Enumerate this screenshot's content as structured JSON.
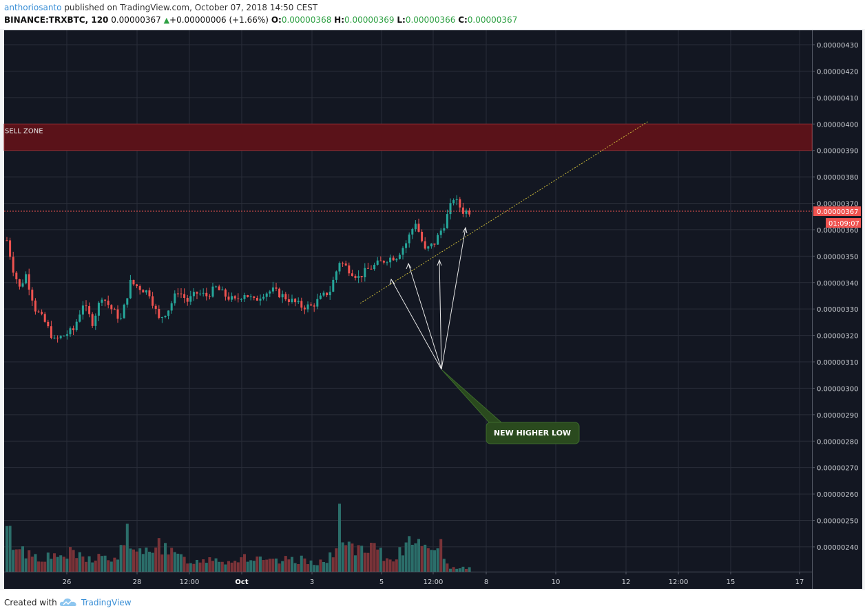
{
  "header": {
    "author": "anthoriosanto",
    "published": "published on TradingView.com, October 07, 2018 14:50 CEST",
    "symbol": "BINANCE:TRXBTC, 120",
    "last": "0.00000367",
    "change": "+0.00000006 (+1.66%)",
    "o_label": "O:",
    "o_val": "0.00000368",
    "h_label": "H:",
    "h_val": "0.00000369",
    "l_label": "L:",
    "l_val": "0.00000366",
    "c_label": "C:",
    "c_val": "0.00000367"
  },
  "footer": {
    "created_with": "Created with",
    "brand": "TradingView"
  },
  "colors": {
    "background": "#131722",
    "up": "#26a69a",
    "down": "#ef5350",
    "sell_zone": "#5a1219",
    "trendline": "#c9b93a",
    "callout": "#2a4a1e"
  },
  "chart_data": {
    "type": "candlestick",
    "y_ticks": [
      "0.00000430",
      "0.00000420",
      "0.00000410",
      "0.00000400",
      "0.00000390",
      "0.00000380",
      "0.00000370",
      "0.00000360",
      "0.00000350",
      "0.00000340",
      "0.00000330",
      "0.00000320",
      "0.00000310",
      "0.00000300",
      "0.00000290",
      "0.00000280",
      "0.00000270",
      "0.00000260",
      "0.00000250",
      "0.00000240"
    ],
    "x_ticks": [
      "26",
      "28",
      "12:00",
      "Oct",
      "3",
      "5",
      "12:00",
      "8",
      "10",
      "12",
      "12:00",
      "15",
      "17"
    ],
    "current_price_label": "0.00000367",
    "countdown_label": "01:09:07",
    "sell_zone": {
      "label": "SELL ZONE",
      "from": 3.9e-06,
      "to": 4e-06
    },
    "annotation": "NEW HIGHER LOW",
    "price_anchors": [
      [
        0,
        356
      ],
      [
        2,
        345
      ],
      [
        4,
        338
      ],
      [
        6,
        343
      ],
      [
        9,
        330
      ],
      [
        12,
        325
      ],
      [
        15,
        318
      ],
      [
        18,
        320
      ],
      [
        21,
        322
      ],
      [
        24,
        332
      ],
      [
        27,
        325
      ],
      [
        30,
        335
      ],
      [
        33,
        330
      ],
      [
        36,
        326
      ],
      [
        39,
        340
      ],
      [
        42,
        338
      ],
      [
        45,
        336
      ],
      [
        48,
        326
      ],
      [
        51,
        330
      ],
      [
        54,
        337
      ],
      [
        57,
        333
      ],
      [
        60,
        336
      ],
      [
        63,
        335
      ],
      [
        66,
        338
      ],
      [
        69,
        335
      ],
      [
        72,
        333
      ],
      [
        75,
        336
      ],
      [
        78,
        333
      ],
      [
        81,
        336
      ],
      [
        84,
        337
      ],
      [
        87,
        335
      ],
      [
        90,
        333
      ],
      [
        93,
        331
      ],
      [
        96,
        331
      ],
      [
        99,
        334
      ],
      [
        102,
        337
      ],
      [
        105,
        348
      ],
      [
        108,
        345
      ],
      [
        111,
        342
      ],
      [
        114,
        345
      ],
      [
        117,
        347
      ],
      [
        120,
        349
      ],
      [
        123,
        350
      ],
      [
        126,
        355
      ],
      [
        129,
        363
      ],
      [
        132,
        352
      ],
      [
        135,
        355
      ],
      [
        138,
        362
      ],
      [
        141,
        372
      ],
      [
        144,
        367
      ],
      [
        146,
        367
      ]
    ],
    "volume_anchors": [
      [
        0,
        56
      ],
      [
        5,
        30
      ],
      [
        10,
        22
      ],
      [
        15,
        20
      ],
      [
        20,
        26
      ],
      [
        25,
        18
      ],
      [
        30,
        22
      ],
      [
        35,
        14
      ],
      [
        38,
        70
      ],
      [
        40,
        24
      ],
      [
        44,
        28
      ],
      [
        47,
        50
      ],
      [
        50,
        30
      ],
      [
        55,
        20
      ],
      [
        60,
        14
      ],
      [
        65,
        22
      ],
      [
        70,
        14
      ],
      [
        75,
        22
      ],
      [
        80,
        16
      ],
      [
        85,
        14
      ],
      [
        90,
        18
      ],
      [
        95,
        16
      ],
      [
        100,
        14
      ],
      [
        104,
        26
      ],
      [
        105,
        96
      ],
      [
        107,
        40
      ],
      [
        110,
        30
      ],
      [
        113,
        26
      ],
      [
        116,
        34
      ],
      [
        120,
        16
      ],
      [
        123,
        22
      ],
      [
        126,
        46
      ],
      [
        127,
        76
      ],
      [
        129,
        40
      ],
      [
        132,
        28
      ],
      [
        134,
        42
      ],
      [
        136,
        48
      ],
      [
        138,
        24
      ],
      [
        140,
        6
      ]
    ]
  }
}
